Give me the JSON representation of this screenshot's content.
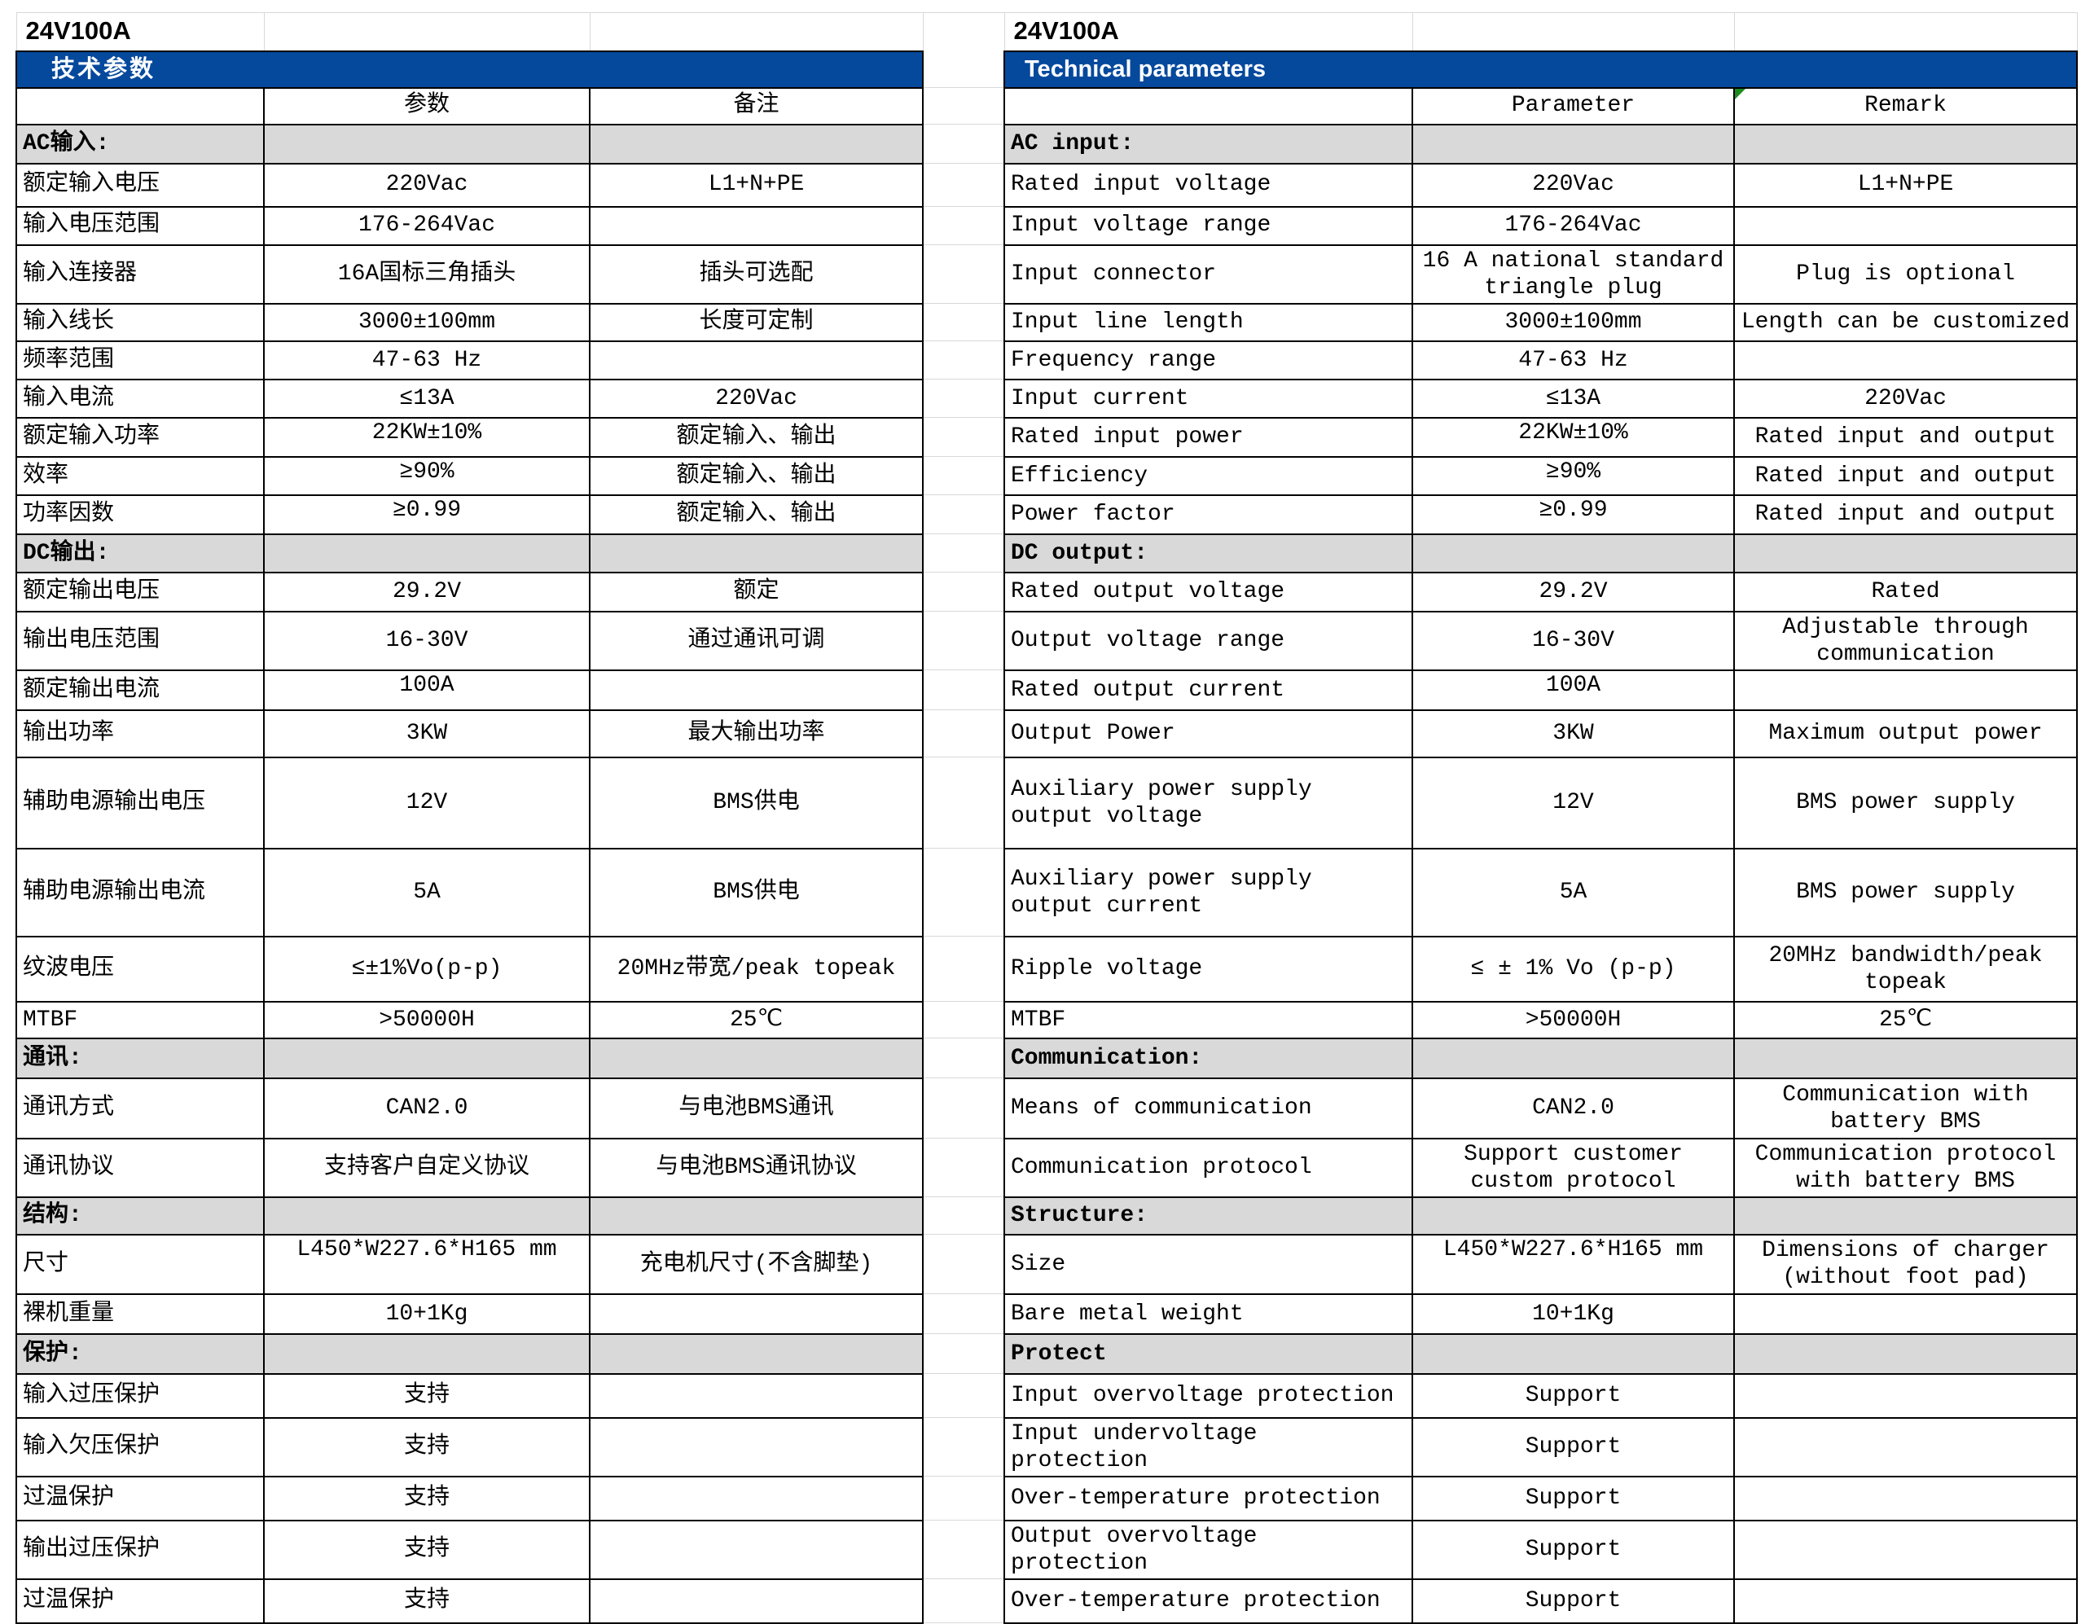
{
  "left_table": {
    "title": "24V100A",
    "section_header": "技术参数",
    "columns": {
      "param": "参数",
      "remark": "备注"
    },
    "rows": [
      {
        "type": "section",
        "label": "AC输入:"
      },
      {
        "label": "额定输入电压",
        "param": "220Vac",
        "remark": "L1+N+PE"
      },
      {
        "label": "输入电压范围",
        "param": "176-264Vac",
        "remark": ""
      },
      {
        "label": "输入连接器",
        "param": "16A国标三角插头",
        "remark": "插头可选配"
      },
      {
        "label": "输入线长",
        "param": "3000±100mm",
        "remark": "长度可定制"
      },
      {
        "label": "频率范围",
        "param": "47-63 Hz",
        "remark": ""
      },
      {
        "label": "输入电流",
        "param": "≤13A",
        "remark": "220Vac"
      },
      {
        "label": "额定输入功率",
        "param": "22KW±10%",
        "remark": "额定输入、输出",
        "valign": "top"
      },
      {
        "label": "效率",
        "param": "≥90%",
        "remark": "额定输入、输出",
        "valign": "top"
      },
      {
        "label": "功率因数",
        "param": "≥0.99",
        "remark": "额定输入、输出",
        "valign": "top"
      },
      {
        "type": "section",
        "label": "DC输出:"
      },
      {
        "label": "额定输出电压",
        "param": "29.2V",
        "remark": "额定"
      },
      {
        "label": "输出电压范围",
        "param": "16-30V",
        "remark": "通过通讯可调"
      },
      {
        "label": "额定输出电流",
        "param": "100A",
        "remark": "",
        "valign": "top"
      },
      {
        "label": "输出功率",
        "param": "3KW",
        "remark": "最大输出功率"
      },
      {
        "label": "辅助电源输出电压",
        "param": "12V",
        "remark": "BMS供电"
      },
      {
        "label": "辅助电源输出电流",
        "param": "5A",
        "remark": "BMS供电"
      },
      {
        "label": "纹波电压",
        "param": "≤±1%Vo(p-p)",
        "remark": "20MHz带宽/peak topeak"
      },
      {
        "label": "MTBF",
        "param": ">50000H",
        "remark": "25℃"
      },
      {
        "type": "section",
        "label": "通讯:"
      },
      {
        "label": "通讯方式",
        "param": "CAN2.0",
        "remark": "与电池BMS通讯"
      },
      {
        "label": "通讯协议",
        "param": "支持客户自定义协议",
        "remark": "与电池BMS通讯协议"
      },
      {
        "type": "section",
        "label": "结构:"
      },
      {
        "label": "尺寸",
        "param": "L450*W227.6*H165 mm",
        "remark": "充电机尺寸(不含脚垫)",
        "valign": "top"
      },
      {
        "label": "裸机重量",
        "param": "10+1Kg",
        "remark": ""
      },
      {
        "type": "section",
        "label": "保护:"
      },
      {
        "label": "输入过压保护",
        "param": "支持",
        "remark": ""
      },
      {
        "label": "输入欠压保护",
        "param": "支持",
        "remark": ""
      },
      {
        "label": "过温保护",
        "param": "支持",
        "remark": ""
      },
      {
        "label": "输出过压保护",
        "param": "支持",
        "remark": ""
      },
      {
        "label": "过温保护",
        "param": "支持",
        "remark": ""
      }
    ]
  },
  "right_table": {
    "title": "24V100A",
    "section_header": "Technical parameters",
    "columns": {
      "param": "Parameter",
      "remark": "Remark"
    },
    "rows": [
      {
        "type": "section",
        "label": "AC input:"
      },
      {
        "label": "Rated input voltage",
        "param": "220Vac",
        "remark": "L1+N+PE"
      },
      {
        "label": "Input voltage range",
        "param": "176-264Vac",
        "remark": ""
      },
      {
        "label": "Input connector",
        "param": "16 A national standard triangle plug",
        "remark": "Plug is optional"
      },
      {
        "label": "Input line length",
        "param": "3000±100mm",
        "remark": "Length can be customized"
      },
      {
        "label": "Frequency range",
        "param": "47-63 Hz",
        "remark": ""
      },
      {
        "label": "Input current",
        "param": "≤13A",
        "remark": "220Vac"
      },
      {
        "label": "Rated input power",
        "param": "22KW±10%",
        "remark": "Rated input and output",
        "valign": "top"
      },
      {
        "label": "Efficiency",
        "param": "≥90%",
        "remark": "Rated input and output",
        "valign": "top"
      },
      {
        "label": "Power factor",
        "param": "≥0.99",
        "remark": "Rated input and output",
        "valign": "top"
      },
      {
        "type": "section",
        "label": "DC output:"
      },
      {
        "label": "Rated output voltage",
        "param": "29.2V",
        "remark": "Rated"
      },
      {
        "label": "Output voltage range",
        "param": "16-30V",
        "remark": "Adjustable through communication"
      },
      {
        "label": "Rated output current",
        "param": "100A",
        "remark": "",
        "valign": "top"
      },
      {
        "label": "Output Power",
        "param": "3KW",
        "remark": "Maximum output power"
      },
      {
        "label": "Auxiliary power supply output voltage",
        "param": "12V",
        "remark": "BMS power supply"
      },
      {
        "label": "Auxiliary power supply output current",
        "param": "5A",
        "remark": "BMS power supply"
      },
      {
        "label": "Ripple voltage",
        "param": "≤ ± 1% Vo (p-p)",
        "remark": "20MHz bandwidth/peak topeak"
      },
      {
        "label": "MTBF",
        "param": ">50000H",
        "remark": "25℃"
      },
      {
        "type": "section",
        "label": "Communication:"
      },
      {
        "label": "Means of communication",
        "param": "CAN2.0",
        "remark": "Communication with battery BMS"
      },
      {
        "label": "Communication protocol",
        "param": "Support customer custom protocol",
        "remark": "Communication protocol with battery BMS"
      },
      {
        "type": "section",
        "label": "Structure:"
      },
      {
        "label": "Size",
        "param": "L450*W227.6*H165 mm",
        "remark": "Dimensions of charger (without foot pad)",
        "valign": "top"
      },
      {
        "label": "Bare metal weight",
        "param": "10+1Kg",
        "remark": ""
      },
      {
        "type": "section",
        "label": "Protect"
      },
      {
        "label": "Input overvoltage protection",
        "param": "Support",
        "remark": ""
      },
      {
        "label": "Input undervoltage protection",
        "param": "Support",
        "remark": ""
      },
      {
        "label": "Over-temperature protection",
        "param": "Support",
        "remark": ""
      },
      {
        "label": "Output overvoltage protection",
        "param": "Support",
        "remark": ""
      },
      {
        "label": "Over-temperature protection",
        "param": "Support",
        "remark": ""
      }
    ]
  },
  "colors": {
    "band_blue": "#05499d",
    "section_gray": "#d9d9d9",
    "border_black": "#000000",
    "gridline_gray": "#d8d8d8",
    "flag_green": "#1f8a1f"
  }
}
